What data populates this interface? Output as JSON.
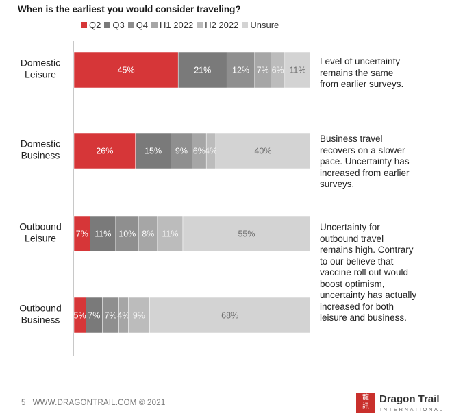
{
  "chart_data": {
    "type": "bar",
    "orientation": "horizontal",
    "stacked": true,
    "title": "When is the earliest you would consider traveling?",
    "categories": [
      "Domestic Leisure",
      "Domestic Business",
      "Outbound Leisure",
      "Outbound Business"
    ],
    "category_lines": [
      [
        "Domestic",
        "Leisure"
      ],
      [
        "Domestic",
        "Business"
      ],
      [
        "Outbound",
        "Leisure"
      ],
      [
        "Outbound",
        "Business"
      ]
    ],
    "series": [
      {
        "name": "Q2",
        "values": [
          45,
          26,
          7,
          5
        ],
        "color": "#d63638"
      },
      {
        "name": "Q3",
        "values": [
          21,
          15,
          11,
          7
        ],
        "color": "#7a7a7a"
      },
      {
        "name": "Q4",
        "values": [
          12,
          9,
          10,
          7
        ],
        "color": "#8f8f8f"
      },
      {
        "name": "H1 2022",
        "values": [
          7,
          6,
          8,
          4
        ],
        "color": "#a6a6a6"
      },
      {
        "name": "H2 2022",
        "values": [
          6,
          4,
          11,
          9
        ],
        "color": "#bcbcbc"
      },
      {
        "name": "Unsure",
        "values": [
          11,
          40,
          55,
          68
        ],
        "color": "#d3d3d3"
      }
    ],
    "value_suffix": "%",
    "legend_position": "top",
    "grid": false
  },
  "annotations": [
    [
      "Level of uncertainty",
      "remains the same",
      "from earlier surveys."
    ],
    [
      "Business travel",
      "recovers on a slower",
      "pace. Uncertainty has",
      "increased from earlier",
      "surveys."
    ],
    [
      "Uncertainty for",
      "outbound travel",
      "remains high. Contrary",
      "to our believe that",
      "vaccine roll out would",
      "boost optimism,",
      "uncertainty has actually",
      "increased for both",
      "leisure and business."
    ]
  ],
  "footer": {
    "text": "5 | WWW.DRAGONTRAIL.COM © 2021"
  },
  "logo": {
    "mark": "龍\n訊",
    "name": "Dragon Trail",
    "sub": "INTERNATIONAL"
  }
}
